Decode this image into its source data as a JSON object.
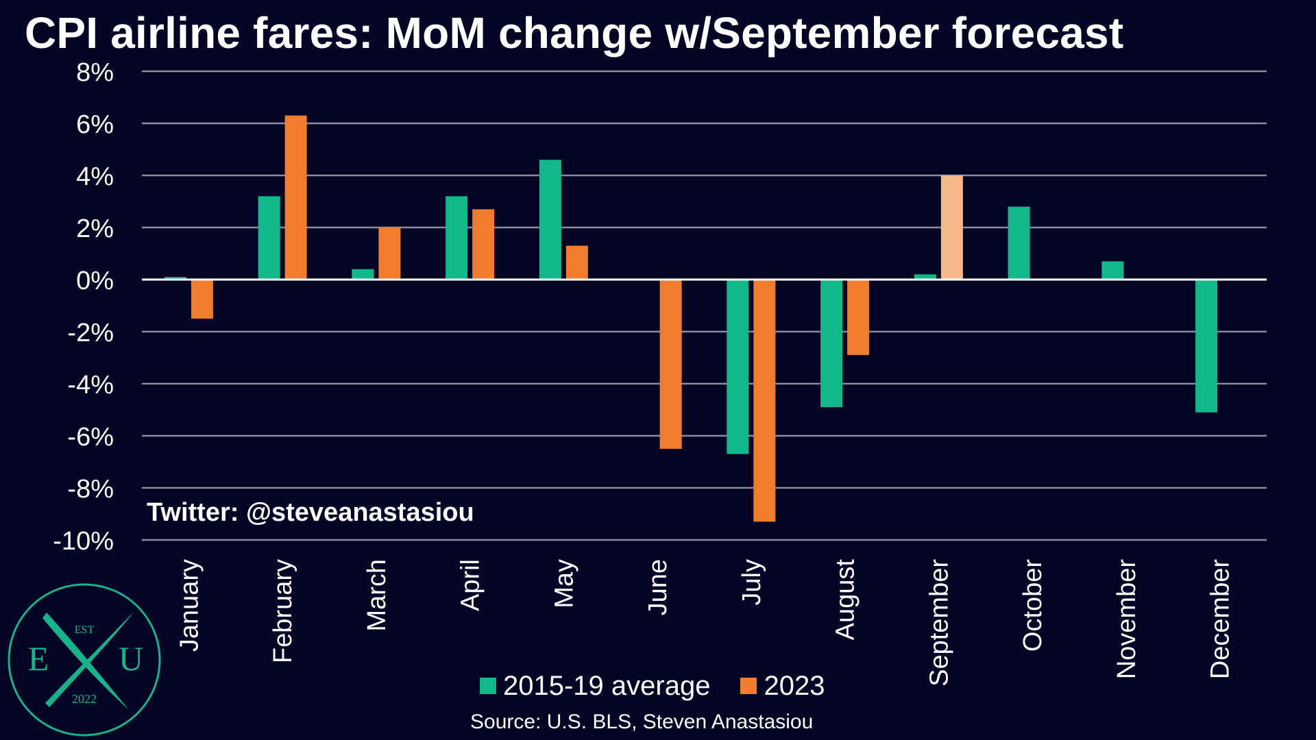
{
  "title": "CPI airline fares: MoM change w/September forecast",
  "watermark": "Twitter: @steveanastasiou",
  "source": "Source: U.S. BLS, Steven Anastasiou",
  "logo": {
    "top_text": "EST",
    "left_letter": "E",
    "right_letter": "U",
    "bottom_text": "2022"
  },
  "colors": {
    "background": "#040524",
    "series_avg": "#10b98a",
    "series_2023": "#ef7d2d",
    "forecast": "#f6b98b",
    "grid": "#8c8c9a",
    "logo": "#15b48a"
  },
  "chart_data": {
    "type": "bar",
    "title": "CPI airline fares: MoM change w/September forecast",
    "xlabel": "",
    "ylabel": "",
    "ylim": [
      -10,
      8
    ],
    "ytick_step": 2,
    "ytick_labels": [
      "8%",
      "6%",
      "4%",
      "2%",
      "0%",
      "-2%",
      "-4%",
      "-6%",
      "-8%",
      "-10%"
    ],
    "grid": true,
    "legend_position": "bottom",
    "categories": [
      "January",
      "February",
      "March",
      "April",
      "May",
      "June",
      "July",
      "August",
      "September",
      "October",
      "November",
      "December"
    ],
    "series": [
      {
        "name": "2015-19 average",
        "color": "#10b98a",
        "values": [
          0.1,
          3.2,
          0.4,
          3.2,
          4.6,
          0.0,
          -6.7,
          -4.9,
          0.2,
          2.8,
          0.7,
          -5.1
        ]
      },
      {
        "name": "2023",
        "color": "#ef7d2d",
        "values": [
          -1.5,
          6.3,
          2.0,
          2.7,
          1.3,
          -6.5,
          -9.3,
          -2.9,
          4.0,
          null,
          null,
          null
        ],
        "forecast_index": 8,
        "forecast_color": "#f6b98b"
      }
    ]
  }
}
